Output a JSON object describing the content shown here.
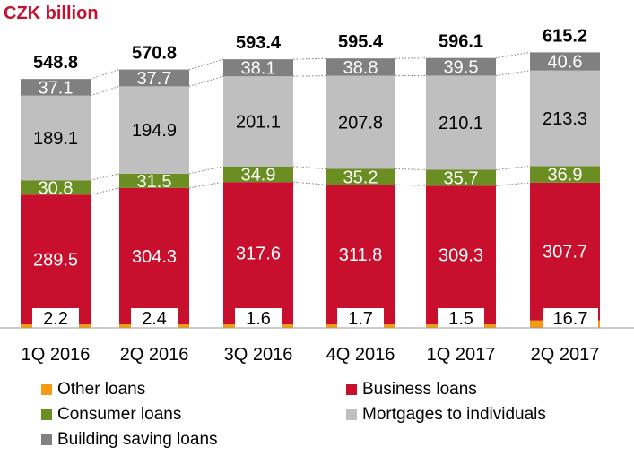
{
  "unit_label": "CZK billion",
  "chart_data": {
    "type": "bar",
    "stacked": true,
    "categories": [
      "1Q 2016",
      "2Q 2016",
      "3Q 2016",
      "4Q 2016",
      "1Q 2017",
      "2Q 2017"
    ],
    "totals": [
      "548.8",
      "570.8",
      "593.4",
      "595.4",
      "596.1",
      "615.2"
    ],
    "series": [
      {
        "name": "Other loans",
        "color": "#f39c12",
        "values": [
          2.2,
          2.4,
          1.6,
          1.7,
          1.5,
          16.7
        ],
        "labels": [
          "2.2",
          "2.4",
          "1.6",
          "1.7",
          "1.5",
          "16.7"
        ]
      },
      {
        "name": "Business loans",
        "color": "#c8102e",
        "values": [
          289.5,
          304.3,
          317.6,
          311.8,
          309.3,
          307.7
        ],
        "labels": [
          "289.5",
          "304.3",
          "317.6",
          "311.8",
          "309.3",
          "307.7"
        ]
      },
      {
        "name": "Consumer loans",
        "color": "#6b8e23",
        "values": [
          30.8,
          31.5,
          34.9,
          35.2,
          35.7,
          36.9
        ],
        "labels": [
          "30.8",
          "31.5",
          "34.9",
          "35.2",
          "35.7",
          "36.9"
        ]
      },
      {
        "name": "Mortgages to individuals",
        "color": "#bfbfbf",
        "values": [
          189.1,
          194.9,
          201.1,
          207.8,
          210.1,
          213.3
        ],
        "labels": [
          "189.1",
          "194.9",
          "201.1",
          "207.8",
          "210.1",
          "213.3"
        ]
      },
      {
        "name": "Building saving loans",
        "color": "#808080",
        "values": [
          37.1,
          37.7,
          38.1,
          38.8,
          39.5,
          40.6
        ],
        "labels": [
          "37.1",
          "37.7",
          "38.1",
          "38.8",
          "39.5",
          "40.6"
        ]
      }
    ],
    "legend_order": [
      "Other loans",
      "Business loans",
      "Consumer loans",
      "Mortgages to individuals",
      "Building saving loans"
    ],
    "legend_position": "bottom",
    "grid": false
  }
}
